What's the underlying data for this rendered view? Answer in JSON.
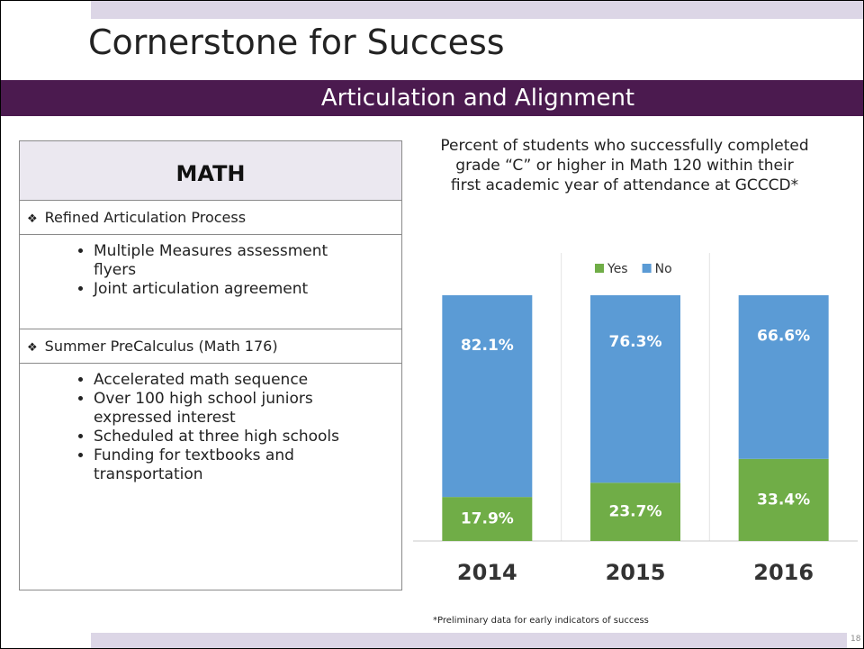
{
  "header": {
    "title": "Cornerstone for Success",
    "subtitle": "Articulation and Alignment"
  },
  "math": {
    "heading": "MATH",
    "sections": [
      {
        "title": "Refined Articulation Process",
        "bullets": [
          "Multiple Measures assessment flyers",
          "Joint articulation agreement"
        ]
      },
      {
        "title": "Summer PreCalculus (Math 176)",
        "bullets": [
          "Accelerated math sequence",
          "Over 100 high school juniors expressed interest",
          "Scheduled at three high schools",
          "Funding for textbooks and transportation"
        ]
      }
    ]
  },
  "chart_data": {
    "type": "stacked_bar",
    "title": "Percent of students who successfully completed grade “C” or higher in Math 120 within their first academic year of attendance at GCCCD*",
    "categories": [
      "2014",
      "2015",
      "2016"
    ],
    "series": [
      {
        "name": "Yes",
        "color": "#70ad47",
        "values": [
          17.9,
          23.7,
          33.4
        ],
        "value_labels": [
          "17.9%",
          "23.7%",
          "33.4%"
        ]
      },
      {
        "name": "No",
        "color": "#5b9bd5",
        "values": [
          82.1,
          76.3,
          66.6
        ],
        "value_labels": [
          "82.1%",
          "76.3%",
          "66.6%"
        ]
      }
    ],
    "ylim": [
      0,
      100
    ],
    "legend": "top"
  },
  "footnote": "*Preliminary data for early indicators of success",
  "page_number": "18"
}
